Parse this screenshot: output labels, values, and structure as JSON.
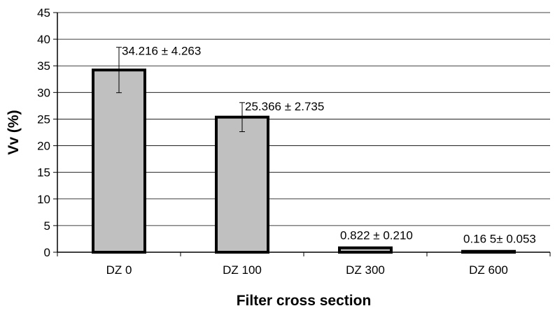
{
  "chart_data": {
    "type": "bar",
    "categories": [
      "DZ 0",
      "DZ 100",
      "DZ 300",
      "DZ 600"
    ],
    "values": [
      34.216,
      25.366,
      0.822,
      0.165
    ],
    "errors": [
      4.263,
      2.735,
      0.21,
      0.053
    ],
    "data_labels": [
      "34.216 ± 4.263",
      "25.366 ± 2.735",
      "0.822 ± 0.210",
      "0.16 5± 0.053"
    ],
    "title": "",
    "xlabel": "Filter cross section",
    "ylabel": "Vv (%)",
    "ylim": [
      0,
      45
    ],
    "yticks": [
      0,
      5,
      10,
      15,
      20,
      25,
      30,
      35,
      40,
      45
    ],
    "grid": "horizontal",
    "legend": "none",
    "colors": {
      "bar_fill": "#c0c0c0",
      "bar_stroke": "#000000",
      "grid": "#000000"
    }
  }
}
